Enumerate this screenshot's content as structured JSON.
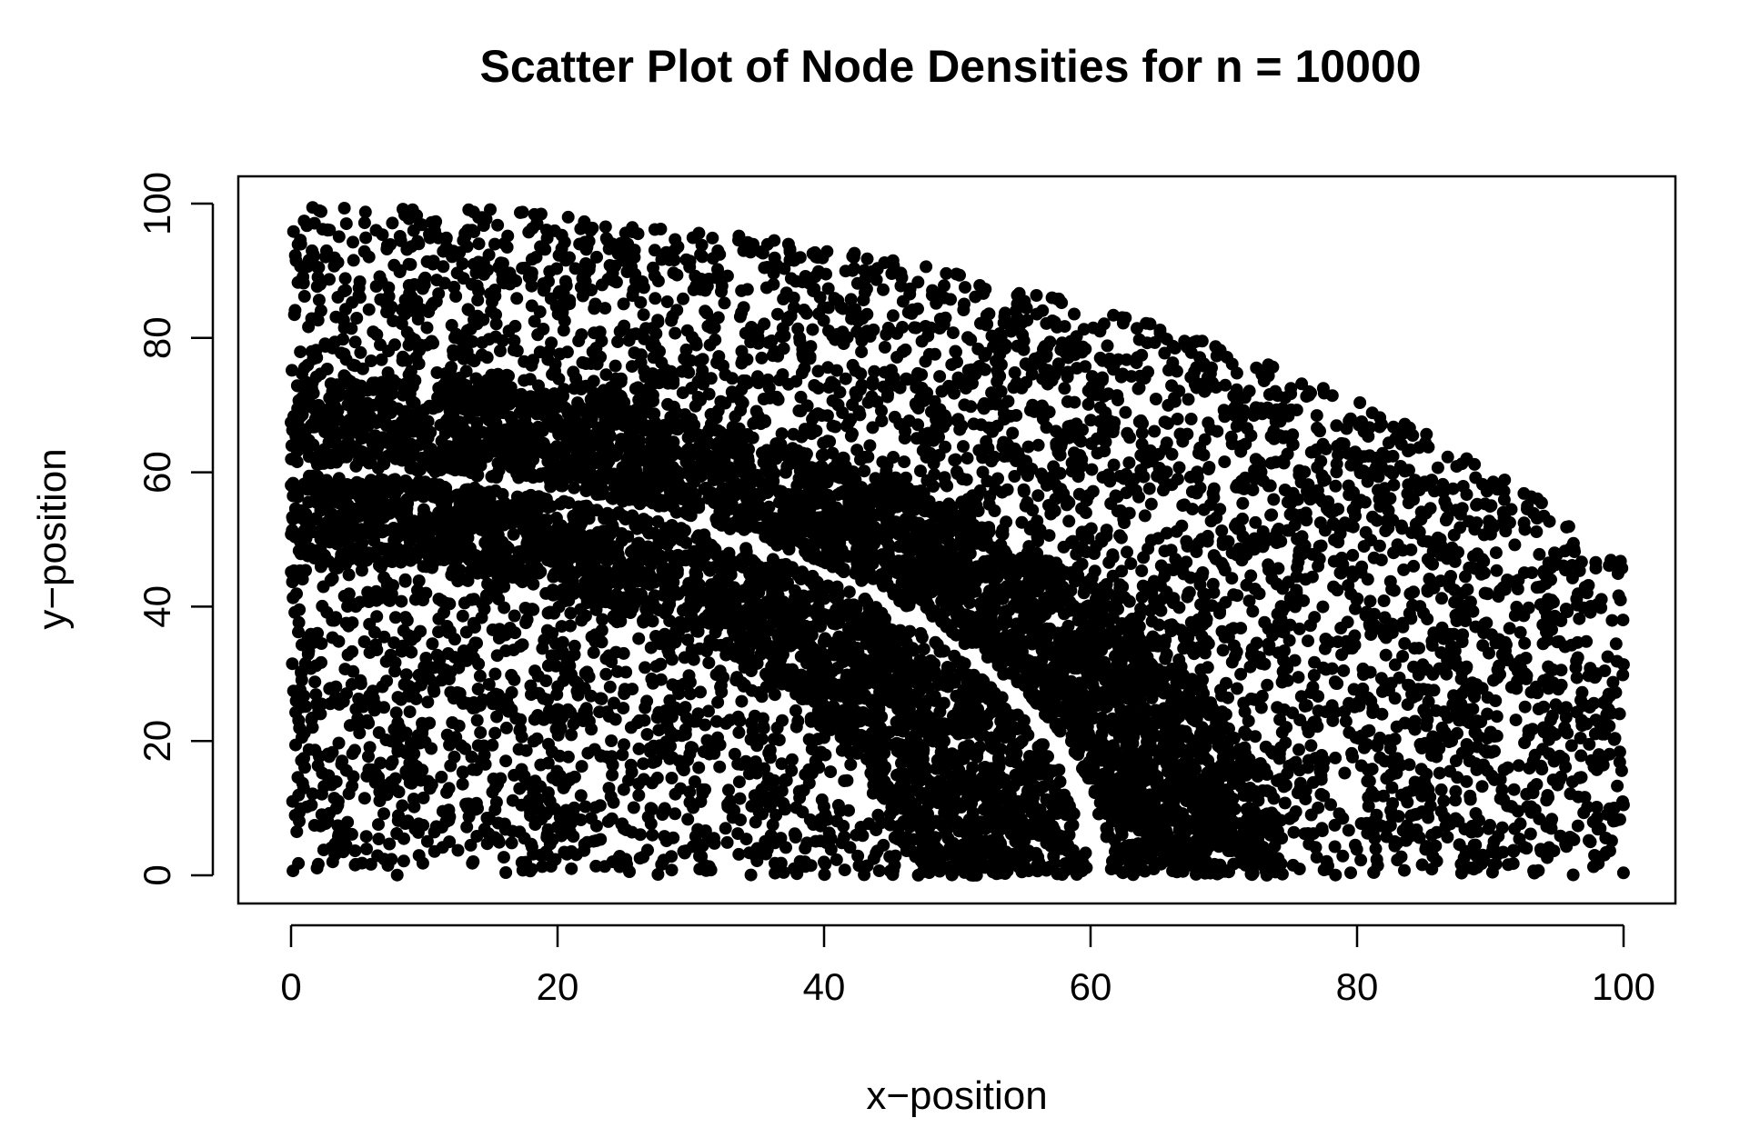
{
  "chart_data": {
    "type": "scatter",
    "title": "Scatter Plot of Node Densities for n = 10000",
    "xlabel": "x−position",
    "ylabel": "y−position",
    "xlim": [
      0,
      100
    ],
    "ylim": [
      0,
      100
    ],
    "x_ticks": [
      0,
      20,
      40,
      60,
      80,
      100
    ],
    "y_ticks": [
      0,
      20,
      40,
      60,
      80,
      100
    ],
    "x_tick_labels": [
      "0",
      "20",
      "40",
      "60",
      "80",
      "100"
    ],
    "y_tick_labels": [
      "0",
      "20",
      "40",
      "60",
      "80",
      "100"
    ],
    "grid": false,
    "legend": "none",
    "n_points": 10000,
    "marker_color": "#000000",
    "regions": [
      {
        "shape": "rectangle",
        "x_range": [
          0,
          100
        ],
        "y_range": [
          0,
          100
        ],
        "bounded_by": "ellipse",
        "ellipse_center": [
          0,
          0
        ],
        "ellipse_radii": [
          113,
          100
        ],
        "role": "sparse outer region",
        "approx_count": 6000
      },
      {
        "shape": "band",
        "curve": "quarter-ellipse",
        "center": [
          0,
          0
        ],
        "inner_radii": [
          61.5,
          61
        ],
        "outer_radii": [
          74,
          74
        ],
        "role": "dense band above gap",
        "approx_count": 2400
      },
      {
        "shape": "band",
        "curve": "quarter-ellipse",
        "center": [
          0,
          0
        ],
        "inner_radii": [
          46,
          47
        ],
        "outer_radii": [
          59.5,
          59.5
        ],
        "role": "dense band below gap",
        "approx_count": 1600
      },
      {
        "shape": "gap",
        "curve": "quarter-ellipse",
        "center": [
          0,
          0
        ],
        "radii": [
          60.5,
          60.2
        ],
        "role": "empty arc"
      }
    ]
  }
}
